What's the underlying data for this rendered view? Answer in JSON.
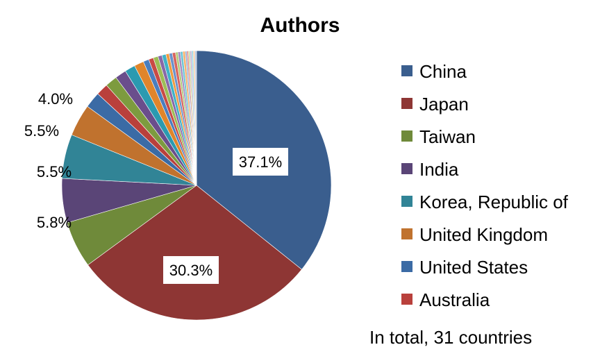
{
  "chart_data": {
    "type": "pie",
    "title": "Authors",
    "note": "In total, 31 countries",
    "colors": {
      "China": "#3a5e8e",
      "Japan": "#8e3634",
      "Taiwan": "#6f8a3a",
      "India": "#5a4577",
      "Korea, Republic of": "#318496",
      "United Kingdom": "#c0722e",
      "United States": "#3b6ba5",
      "Australia": "#b9403c",
      "other_palette": [
        "#7d9b3f",
        "#6a4e8c",
        "#2b9ab0",
        "#e0852b",
        "#4a7ebf",
        "#c94a45",
        "#9dbd56",
        "#8868a8",
        "#3fb2c8",
        "#f09a40",
        "#6b93cc",
        "#d8645f",
        "#b2cc7a",
        "#a58bc0",
        "#6cc5d6",
        "#f5b36f",
        "#91acd6",
        "#e08c88",
        "#c8d99e",
        "#bfb0d4",
        "#9ad6e2",
        "#f7c99c",
        "#b4c7e4"
      ]
    },
    "legend": [
      "China",
      "Japan",
      "Taiwan",
      "India",
      "Korea, Republic of",
      "United Kingdom",
      "United States",
      "Australia"
    ],
    "slices": [
      {
        "name": "China",
        "value": 37.1,
        "label": "37.1%"
      },
      {
        "name": "Japan",
        "value": 30.3,
        "label": "30.3%"
      },
      {
        "name": "Taiwan",
        "value": 5.8,
        "label": "5.8%"
      },
      {
        "name": "India",
        "value": 5.5,
        "label": "5.5%"
      },
      {
        "name": "Korea, Republic of",
        "value": 5.5,
        "label": "5.5%"
      },
      {
        "name": "United Kingdom",
        "value": 4.0,
        "label": "4.0%"
      },
      {
        "name": "United States",
        "value": 2.0,
        "label": ""
      },
      {
        "name": "Australia",
        "value": 1.5,
        "label": ""
      },
      {
        "name": "",
        "value": 1.5,
        "label": ""
      },
      {
        "name": "",
        "value": 1.4,
        "label": ""
      },
      {
        "name": "",
        "value": 1.3,
        "label": ""
      },
      {
        "name": "",
        "value": 1.2,
        "label": ""
      },
      {
        "name": "",
        "value": 0.7,
        "label": ""
      },
      {
        "name": "",
        "value": 0.6,
        "label": ""
      },
      {
        "name": "",
        "value": 0.6,
        "label": ""
      },
      {
        "name": "",
        "value": 0.5,
        "label": ""
      },
      {
        "name": "",
        "value": 0.5,
        "label": ""
      },
      {
        "name": "",
        "value": 0.4,
        "label": ""
      },
      {
        "name": "",
        "value": 0.4,
        "label": ""
      },
      {
        "name": "",
        "value": 0.4,
        "label": ""
      },
      {
        "name": "",
        "value": 0.3,
        "label": ""
      },
      {
        "name": "",
        "value": 0.3,
        "label": ""
      },
      {
        "name": "",
        "value": 0.3,
        "label": ""
      },
      {
        "name": "",
        "value": 0.3,
        "label": ""
      },
      {
        "name": "",
        "value": 0.2,
        "label": ""
      },
      {
        "name": "",
        "value": 0.2,
        "label": ""
      },
      {
        "name": "",
        "value": 0.2,
        "label": ""
      },
      {
        "name": "",
        "value": 0.2,
        "label": ""
      },
      {
        "name": "",
        "value": 0.2,
        "label": ""
      },
      {
        "name": "",
        "value": 0.2,
        "label": ""
      },
      {
        "name": "",
        "value": 0.2,
        "label": ""
      }
    ]
  }
}
